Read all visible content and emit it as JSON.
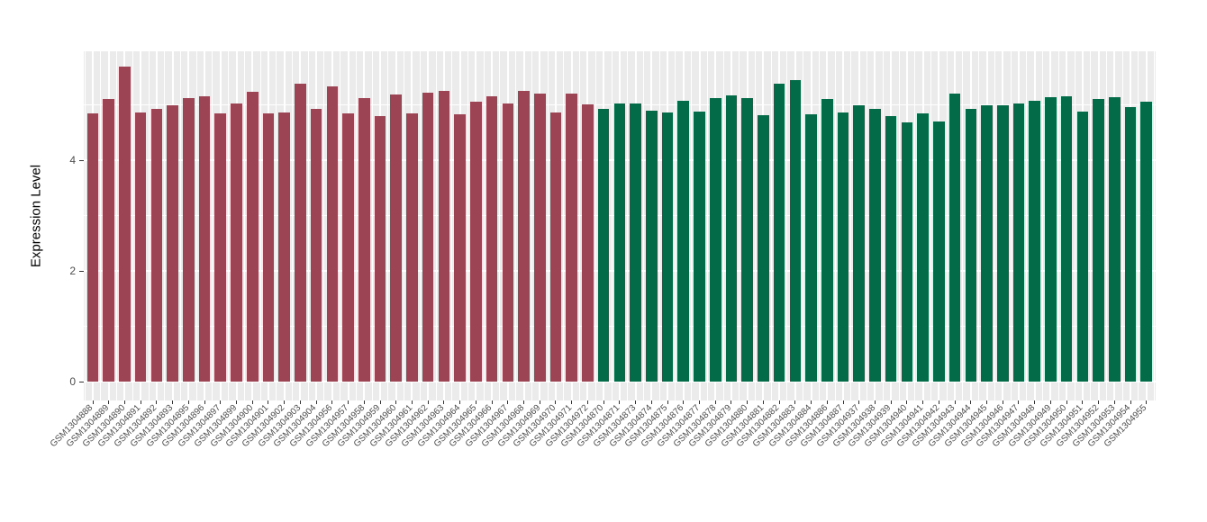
{
  "chart_data": {
    "type": "bar",
    "title": "",
    "xlabel": "",
    "ylabel": "Expression Level",
    "yticks": [
      0,
      2,
      4
    ],
    "ylim": [
      0,
      5.9
    ],
    "grid": true,
    "legend": false,
    "panel_background": "#EBEBEB",
    "gridline_color": "#FFFFFF",
    "axis_text_color": "#4D4D4D",
    "group_split": 32,
    "group_colors": [
      "#9C4354",
      "#046B48"
    ],
    "categories": [
      "GSM1304888",
      "GSM1304889",
      "GSM1304890",
      "GSM1304891",
      "GSM1304892",
      "GSM1304893",
      "GSM1304895",
      "GSM1304896",
      "GSM1304897",
      "GSM1304899",
      "GSM1304900",
      "GSM1304901",
      "GSM1304902",
      "GSM1304903",
      "GSM1304904",
      "GSM1304956",
      "GSM1304957",
      "GSM1304958",
      "GSM1304959",
      "GSM1304960",
      "GSM1304961",
      "GSM1304962",
      "GSM1304963",
      "GSM1304964",
      "GSM1304965",
      "GSM1304966",
      "GSM1304967",
      "GSM1304968",
      "GSM1304969",
      "GSM1304970",
      "GSM1304971",
      "GSM1304972",
      "GSM1304870",
      "GSM1304871",
      "GSM1304873",
      "GSM1304874",
      "GSM1304875",
      "GSM1304876",
      "GSM1304877",
      "GSM1304878",
      "GSM1304879",
      "GSM1304880",
      "GSM1304881",
      "GSM1304882",
      "GSM1304883",
      "GSM1304884",
      "GSM1304886",
      "GSM1304887",
      "GSM1304937",
      "GSM1304938",
      "GSM1304939",
      "GSM1304940",
      "GSM1304941",
      "GSM1304942",
      "GSM1304943",
      "GSM1304944",
      "GSM1304945",
      "GSM1304946",
      "GSM1304947",
      "GSM1304948",
      "GSM1304949",
      "GSM1304950",
      "GSM1304951",
      "GSM1304952",
      "GSM1304953",
      "GSM1304954",
      "GSM1304955"
    ],
    "values": [
      4.85,
      5.11,
      5.69,
      4.86,
      4.92,
      4.99,
      5.12,
      5.16,
      4.85,
      5.02,
      5.23,
      4.85,
      4.86,
      5.39,
      4.93,
      5.34,
      4.84,
      5.12,
      4.8,
      5.19,
      4.84,
      5.22,
      5.26,
      4.83,
      5.06,
      5.16,
      5.03,
      5.26,
      5.21,
      4.87,
      5.2,
      5.01,
      4.92,
      5.02,
      5.03,
      4.9,
      4.87,
      5.08,
      4.88,
      5.12,
      5.17,
      5.13,
      4.82,
      5.38,
      5.45,
      4.83,
      5.11,
      4.87,
      5.0,
      4.93,
      4.79,
      4.68,
      4.84,
      4.7,
      5.21,
      4.93,
      5.0,
      5.0,
      5.02,
      5.07,
      5.14,
      5.16,
      4.88,
      5.1,
      5.14,
      4.96,
      5.06
    ]
  }
}
